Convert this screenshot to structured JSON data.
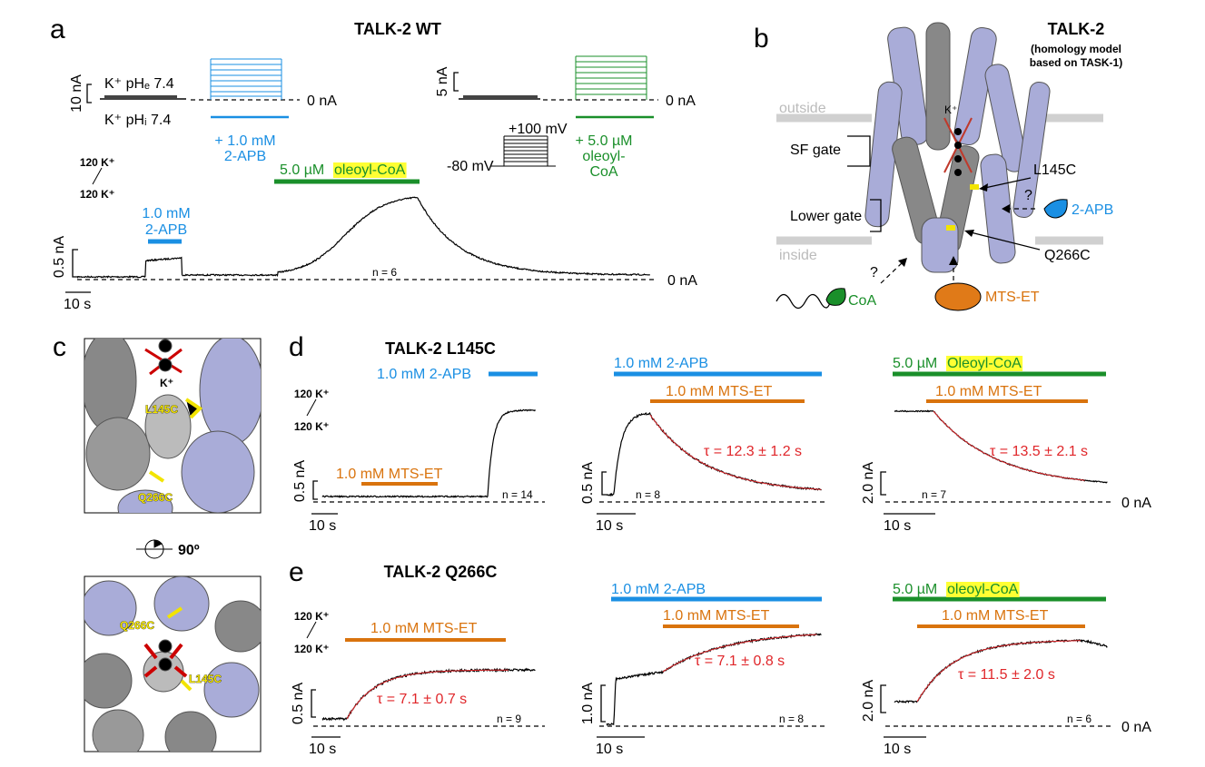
{
  "panel_a": {
    "label": "a",
    "title": "TALK-2 WT",
    "scale_inset_1": "10 nA",
    "outside_solution": "K⁺ pHₑ 7.4",
    "inside_solution": "K⁺ pHᵢ 7.4",
    "zero_1": "0 nA",
    "apb_line1": "+ 1.0 mM",
    "apb_line2": "2-APB",
    "scale_inset_2": "5 nA",
    "zero_2": "0 nA",
    "step_top": "+100 mV",
    "step_bottom": "-80 mV",
    "coa_line1": "+ 5.0 µM",
    "coa_line2": "oleoyl-",
    "coa_line3": "CoA",
    "k_top": "120 K⁺",
    "k_bottom": "120 K⁺",
    "coa_bar_conc": "5.0 µM",
    "coa_bar_name": "oleoyl-CoA",
    "apb_bar_line1": "1.0 mM",
    "apb_bar_line2": "2-APB",
    "scale_current": "0.5 nA",
    "n": "n = 6",
    "zero_3": "0 nA",
    "scale_time": "10 s"
  },
  "panel_b": {
    "label": "b",
    "title": "TALK-2",
    "subtitle_line1": "(homology model",
    "subtitle_line2": "based on TASK-1)",
    "outside": "outside",
    "inside": "inside",
    "ion": "K⁺",
    "sf_gate": "SF gate",
    "lower_gate": "Lower gate",
    "site_1": "L145C",
    "site_2": "Q266C",
    "question_1": "?",
    "apb": "2-APB",
    "question_2": "?",
    "coa": "CoA",
    "mts": "MTS-ET"
  },
  "panel_c": {
    "label": "c",
    "ion": "K⁺",
    "site_1_top": "L145C",
    "site_2_top": "Q266C",
    "rotation": "90º",
    "site_2_bottom": "Q266C",
    "site_1_bottom": "L145C"
  },
  "panel_d": {
    "label": "d",
    "title": "TALK-2 L145C",
    "trace_1": {
      "k_top": "120 K⁺",
      "k_bottom": "120 K⁺",
      "apb": "1.0 mM 2-APB",
      "mts": "1.0 mM MTS-ET",
      "scale_current": "0.5 nA",
      "n": "n = 14",
      "scale_time": "10 s"
    },
    "trace_2": {
      "apb": "1.0 mM 2-APB",
      "mts": "1.0 mM MTS-ET",
      "tau": "τ = 12.3 ± 1.2 s",
      "scale_current": "0.5 nA",
      "n": "n = 8",
      "scale_time": "10 s"
    },
    "trace_3": {
      "coa_conc": "5.0 µM",
      "coa_name": "Oleoyl-CoA",
      "mts": "1.0 mM MTS-ET",
      "tau": "τ = 13.5 ± 2.1 s",
      "scale_current": "2.0 nA",
      "n": "n = 7",
      "scale_time": "10 s",
      "zero": "0 nA"
    }
  },
  "panel_e": {
    "label": "e",
    "title": "TALK-2 Q266C",
    "trace_1": {
      "k_top": "120 K⁺",
      "k_bottom": "120 K⁺",
      "mts": "1.0 mM MTS-ET",
      "tau": "τ = 7.1 ± 0.7 s",
      "scale_current": "0.5 nA",
      "n": "n = 9",
      "scale_time": "10 s"
    },
    "trace_2": {
      "apb": "1.0 mM 2-APB",
      "mts": "1.0 mM MTS-ET",
      "tau": "τ = 7.1 ± 0.8 s",
      "scale_current": "1.0 nA",
      "n": "n = 8",
      "scale_time": "10 s"
    },
    "trace_3": {
      "coa_conc": "5.0 µM",
      "coa_name": "oleoyl-CoA",
      "mts": "1.0 mM MTS-ET",
      "tau": "τ = 11.5 ± 2.0 s",
      "scale_current": "2.0 nA",
      "n": "n = 6",
      "scale_time": "10 s",
      "zero": "0 nA"
    }
  }
}
